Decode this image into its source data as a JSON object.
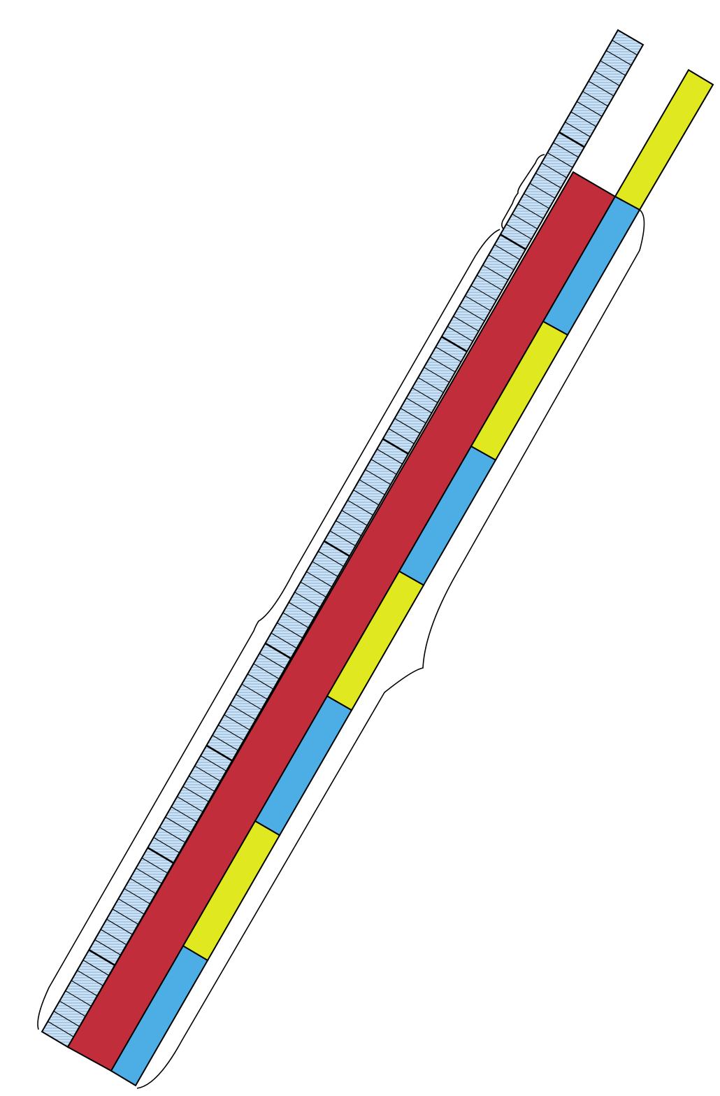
{
  "diagram": {
    "colors": {
      "background": "#ffffff",
      "outline": "#000000",
      "ruler_fill": "#cfe3f3",
      "ruler_hatch": "#4a8fd0",
      "main_bar": "#c22d3c",
      "segment_blue": "#4daee6",
      "segment_yellow": "#e0e820"
    },
    "ruler": {
      "ticks": 98,
      "major_every": 10
    },
    "segments": [
      {
        "name": "yellow-top",
        "color": "segment_yellow"
      },
      {
        "name": "blue-1",
        "color": "segment_blue"
      },
      {
        "name": "yellow-1",
        "color": "segment_yellow"
      },
      {
        "name": "blue-2",
        "color": "segment_blue"
      },
      {
        "name": "yellow-2",
        "color": "segment_yellow"
      },
      {
        "name": "blue-3",
        "color": "segment_blue"
      },
      {
        "name": "yellow-3",
        "color": "segment_yellow"
      },
      {
        "name": "blue-4",
        "color": "segment_blue"
      }
    ],
    "braces": [
      "small-left-brace",
      "long-left-brace",
      "long-right-brace"
    ]
  }
}
